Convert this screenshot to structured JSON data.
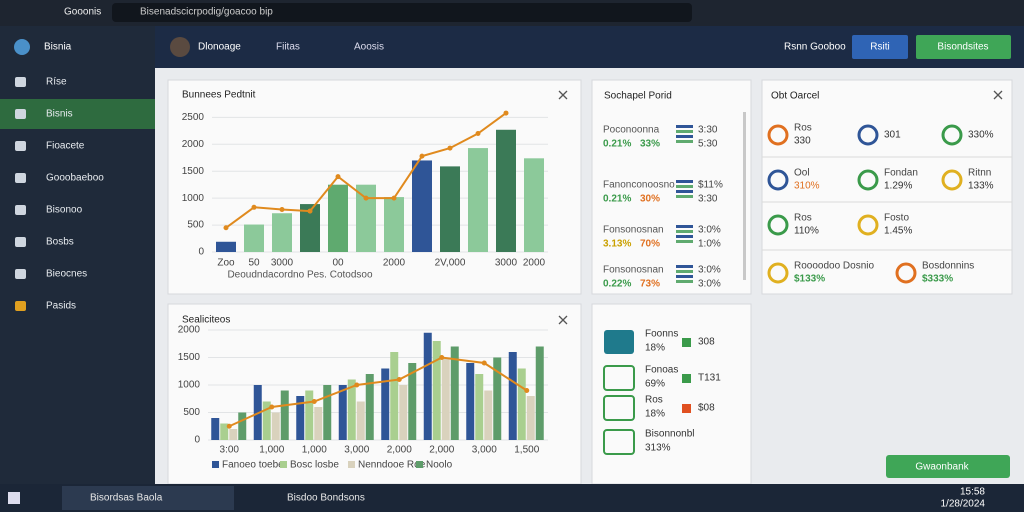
{
  "browser": {
    "tab": "Gooonis",
    "url": "Bisenadscicrpodig/goacoo bip"
  },
  "header": {
    "app": "Bisnia",
    "user": "Dlonoage",
    "links": [
      "Fiitas",
      "Aoosis"
    ],
    "right_link": "Rsnn Gooboo",
    "button1": "Rsiti",
    "button2": "Bisondsites"
  },
  "sidebar": {
    "items": [
      "Ríse",
      "Bisnis",
      "Fioacete",
      "Gooobaeboo",
      "Bisonoo",
      "Bosbs",
      "Bieocnes",
      "Pasids"
    ]
  },
  "chart_data": [
    {
      "type": "bar",
      "title": "Bunnees Pedtnit",
      "ylim": [
        0,
        2600
      ],
      "yticks": [
        0,
        500,
        1000,
        1500,
        2000,
        2500
      ],
      "categories": [
        "Zoo",
        "50",
        "3000",
        null,
        "00",
        null,
        "2000",
        null,
        "2V,000",
        null,
        "3000",
        "2000"
      ],
      "values": [
        190,
        510,
        720,
        890,
        1250,
        1250,
        1020,
        1700,
        1590,
        1930,
        2270,
        1740
      ],
      "colors": [
        "#2f5597",
        "#8cc99a",
        "#8cc99a",
        "#3b7a57",
        "#5faa6f",
        "#8cc99a",
        "#8cc99a",
        "#2f5597",
        "#3b7a57",
        "#8cc99a",
        "#3b7a57",
        "#8cc99a"
      ],
      "line_color": "#e08a1e",
      "line_values": [
        450,
        830,
        790,
        760,
        1400,
        1000,
        1000,
        1780,
        1930,
        2200,
        2580,
        null
      ],
      "caption": "Deoudndacordno Pes. Cotodsoo"
    },
    {
      "type": "grouped-bar",
      "title": "Sealiciteos",
      "ylim": [
        0,
        2000
      ],
      "yticks": [
        0,
        500,
        1000,
        1500,
        2000
      ],
      "categories": [
        "3:00",
        "1,000",
        "1,000",
        "3,000",
        "2,000",
        "2,000",
        "3,000",
        "1,500"
      ],
      "series": [
        {
          "name": "Fanoeo toebe",
          "color": "#2f5597",
          "values": [
            400,
            1000,
            800,
            1000,
            1300,
            1950,
            1400,
            1600
          ]
        },
        {
          "name": "Bosc losbe",
          "color": "#a9cf8f",
          "values": [
            300,
            700,
            900,
            1100,
            1600,
            1800,
            1200,
            1300
          ]
        },
        {
          "name": "Nenndooe Roe",
          "color": "#d9d2bd",
          "values": [
            200,
            500,
            600,
            700,
            1000,
            1500,
            900,
            800
          ]
        },
        {
          "name": "Noolo",
          "color": "#5e9c6a",
          "values": [
            500,
            900,
            1000,
            1200,
            1400,
            1700,
            1500,
            1700
          ]
        }
      ],
      "line_color": "#e08a1e",
      "line_values": [
        250,
        600,
        700,
        1000,
        1100,
        1500,
        1400,
        900
      ]
    }
  ],
  "report": {
    "title": "Sochapel Porid",
    "rows": [
      {
        "label": "Poconoonna",
        "a": "0.21%",
        "b": "33%",
        "n1": "3:30",
        "n2": "5:30"
      },
      {
        "label": "Fanonconoosno",
        "a": "0.21%",
        "b": "30%",
        "n1": "$11%",
        "n2": "3:30"
      },
      {
        "label": "Fonsonosnan",
        "a": "3.13%",
        "b": "70%",
        "n1": "3:0%",
        "n2": "1:0%"
      },
      {
        "label": "Fonsonosnan",
        "a": "0.22%",
        "b": "73%",
        "n1": "3:0%",
        "n2": "3:0%"
      }
    ]
  },
  "overview": {
    "title": "Obt Oarcel",
    "cards": [
      [
        {
          "label": "Ros",
          "value": "330"
        },
        {
          "label": "",
          "value": "301"
        },
        {
          "label": "",
          "value": "330%"
        }
      ],
      [
        {
          "label": "Ool",
          "value": "310%"
        },
        {
          "label": "Fondan",
          "value": "1.29%"
        },
        {
          "label": "Ritnn",
          "value": "133%"
        }
      ],
      [
        {
          "label": "Ros",
          "value": "110%"
        },
        {
          "label": "Fosto",
          "value": "1.45%"
        }
      ],
      [
        {
          "label": "Roooodoo Dosnio",
          "value": "$133%"
        },
        {
          "label": "Bosdonnins",
          "value": "$333%"
        }
      ]
    ]
  },
  "summary": {
    "items": [
      {
        "label": "Foonns",
        "a": "18%",
        "b": "308"
      },
      {
        "label": "Fonoas",
        "a": "69%",
        "b": "T131"
      },
      {
        "label": "Ros",
        "a": "18%",
        "b": "$08"
      },
      {
        "label": "Bisonnonbl",
        "a": "313%"
      }
    ],
    "button": "Gwaonbank"
  },
  "taskbar": {
    "apps": [
      "Bisordsas Baola",
      "Bisdoo Bondsons"
    ],
    "time": "15:58",
    "date": "1/28/2024"
  }
}
